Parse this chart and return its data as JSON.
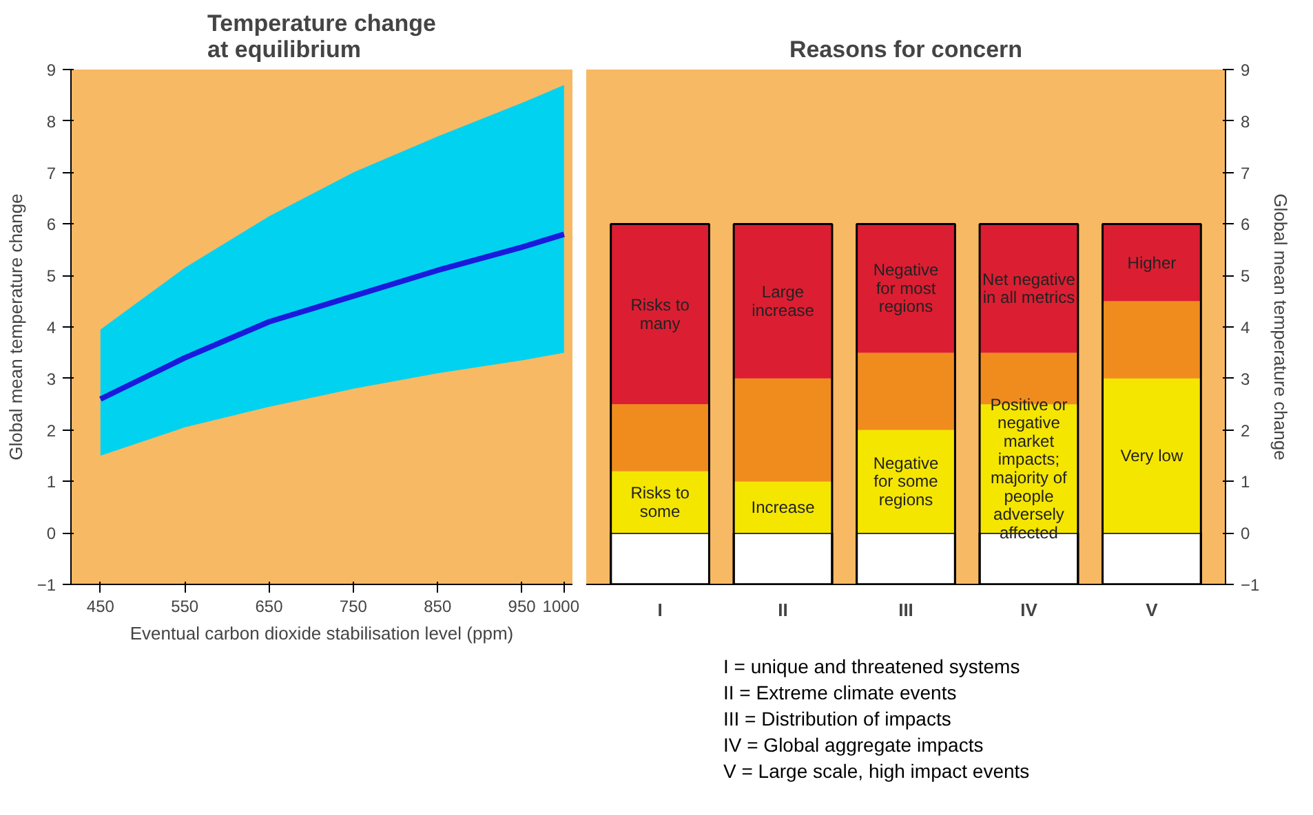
{
  "chart_data": [
    {
      "type": "line",
      "title": "Temperature change\nat equilibrium",
      "xlabel": "Eventual carbon dioxide stabilisation level (ppm)",
      "ylabel": "Global mean temperature change",
      "x": [
        450,
        550,
        650,
        750,
        850,
        950,
        1000
      ],
      "series": [
        {
          "color": "#1a1adc",
          "values": [
            2.6,
            3.4,
            4.1,
            4.6,
            5.1,
            5.55,
            5.8
          ],
          "lower": [
            1.5,
            2.05,
            2.45,
            2.8,
            3.1,
            3.35,
            3.5
          ],
          "upper": [
            3.95,
            5.15,
            6.15,
            7.0,
            7.7,
            8.35,
            8.7
          ]
        }
      ],
      "xlim": [
        415,
        1010
      ],
      "xticks": [
        450,
        550,
        650,
        750,
        850,
        950,
        1000
      ],
      "ylim": [
        -1,
        9
      ],
      "yticks": [
        -1,
        0,
        1,
        2,
        3,
        4,
        5,
        6,
        7,
        8,
        9
      ],
      "grid": false,
      "marker": "none",
      "line_style": "solid"
    },
    {
      "type": "bar",
      "title": "Reasons for concern",
      "ylabel": "Global mean temperature change",
      "stacked": true,
      "categories": [
        "I",
        "II",
        "III",
        "IV",
        "V"
      ],
      "series": [
        {
          "color": "#ffffff",
          "values": [
            -1,
            -1,
            -1,
            -1,
            -1
          ]
        },
        {
          "color": "#f5e600",
          "values": [
            1.2,
            1,
            2,
            2.5,
            3
          ],
          "value_labels": [
            "Risks to\nsome",
            "Increase",
            "Negative\nfor some\nregions",
            "Positive or\nnegative\nmarket\nimpacts;\nmajority of\npeople\nadversely\naffected",
            "Very low"
          ]
        },
        {
          "color": "#f08c1e",
          "values": [
            1.3,
            2,
            1.5,
            1,
            1.5
          ]
        },
        {
          "color": "#dc1e32",
          "values": [
            3.5,
            3,
            2.5,
            2.5,
            1.5
          ],
          "value_labels": [
            "Risks to\nmany",
            "Large\nincrease",
            "Negative\nfor most\nregions",
            "Net negative\nin all metrics",
            "Higher"
          ]
        }
      ],
      "ylim": [
        -1,
        9
      ],
      "yticks": [
        -1,
        0,
        1,
        2,
        3,
        4,
        5,
        6,
        7,
        8,
        9
      ],
      "grid": false,
      "annotations": [
        "I = unique and threatened systems",
        "II = Extreme climate events",
        "III = Distribution of impacts",
        "IV = Global aggregate impacts",
        "V = Large scale, high impact events"
      ]
    }
  ]
}
